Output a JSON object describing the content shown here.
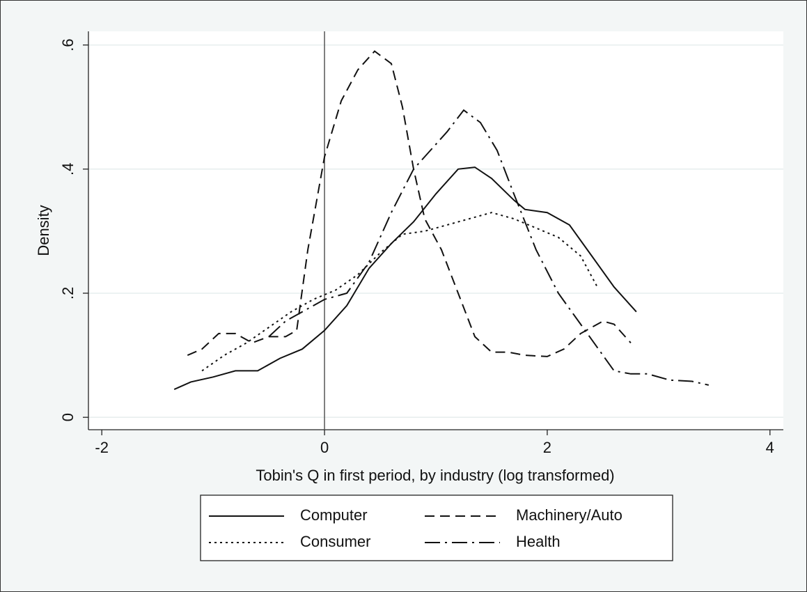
{
  "chart_data": {
    "type": "line",
    "xlabel": "Tobin's Q in first period, by industry (log transformed)",
    "ylabel": "Density",
    "xlim": [
      -2.12,
      4.12
    ],
    "ylim": [
      -0.02,
      0.622
    ],
    "xticks": [
      -2,
      0,
      2,
      4
    ],
    "yticks": [
      {
        "value": 0,
        "label": "0"
      },
      {
        "value": 0.2,
        "label": ".2"
      },
      {
        "value": 0.4,
        "label": ".4"
      },
      {
        "value": 0.6,
        "label": ".6"
      }
    ],
    "grid": true,
    "xline": 0,
    "legend": "bottom",
    "series": [
      {
        "name": "Computer",
        "color": "#111111",
        "dash": "solid",
        "x": [
          -1.35,
          -1.2,
          -1.0,
          -0.8,
          -0.6,
          -0.4,
          -0.2,
          0,
          0.2,
          0.4,
          0.6,
          0.8,
          1.0,
          1.2,
          1.35,
          1.5,
          1.7,
          1.8,
          2.0,
          2.2,
          2.4,
          2.6,
          2.8
        ],
        "values": [
          0.045,
          0.057,
          0.065,
          0.075,
          0.075,
          0.095,
          0.11,
          0.14,
          0.18,
          0.24,
          0.28,
          0.315,
          0.36,
          0.4,
          0.403,
          0.385,
          0.35,
          0.335,
          0.33,
          0.31,
          0.26,
          0.21,
          0.17
        ]
      },
      {
        "name": "Machinery/Auto",
        "color": "#111111",
        "dash": "dashed",
        "x": [
          -1.23,
          -1.1,
          -0.95,
          -0.8,
          -0.65,
          -0.5,
          -0.35,
          -0.25,
          -0.15,
          0,
          0.15,
          0.3,
          0.45,
          0.6,
          0.7,
          0.8,
          0.9,
          1.05,
          1.2,
          1.35,
          1.5,
          1.65,
          1.8,
          2.0,
          2.15,
          2.3,
          2.5,
          2.6,
          2.75
        ],
        "values": [
          0.1,
          0.11,
          0.135,
          0.135,
          0.12,
          0.13,
          0.13,
          0.14,
          0.27,
          0.42,
          0.51,
          0.56,
          0.59,
          0.57,
          0.5,
          0.4,
          0.32,
          0.27,
          0.2,
          0.13,
          0.105,
          0.105,
          0.1,
          0.098,
          0.11,
          0.135,
          0.155,
          0.15,
          0.12
        ]
      },
      {
        "name": "Consumer",
        "color": "#111111",
        "dash": "dotted",
        "x": [
          -1.1,
          -0.9,
          -0.7,
          -0.5,
          -0.3,
          -0.1,
          0.1,
          0.3,
          0.5,
          0.7,
          0.9,
          1.1,
          1.3,
          1.5,
          1.7,
          1.9,
          2.1,
          2.3,
          2.45
        ],
        "values": [
          0.075,
          0.1,
          0.12,
          0.145,
          0.17,
          0.19,
          0.205,
          0.23,
          0.265,
          0.295,
          0.3,
          0.31,
          0.32,
          0.33,
          0.32,
          0.305,
          0.29,
          0.26,
          0.21
        ]
      },
      {
        "name": "Health",
        "color": "#111111",
        "dash": "dashdot",
        "x": [
          -0.5,
          -0.35,
          -0.2,
          0,
          0.2,
          0.4,
          0.6,
          0.8,
          1.0,
          1.1,
          1.25,
          1.4,
          1.55,
          1.7,
          1.9,
          2.1,
          2.3,
          2.5,
          2.6,
          2.75,
          2.9,
          3.1,
          3.3,
          3.45
        ],
        "values": [
          0.13,
          0.155,
          0.17,
          0.19,
          0.2,
          0.25,
          0.33,
          0.4,
          0.44,
          0.46,
          0.495,
          0.475,
          0.43,
          0.36,
          0.27,
          0.2,
          0.15,
          0.1,
          0.075,
          0.07,
          0.07,
          0.06,
          0.058,
          0.052
        ]
      }
    ]
  }
}
